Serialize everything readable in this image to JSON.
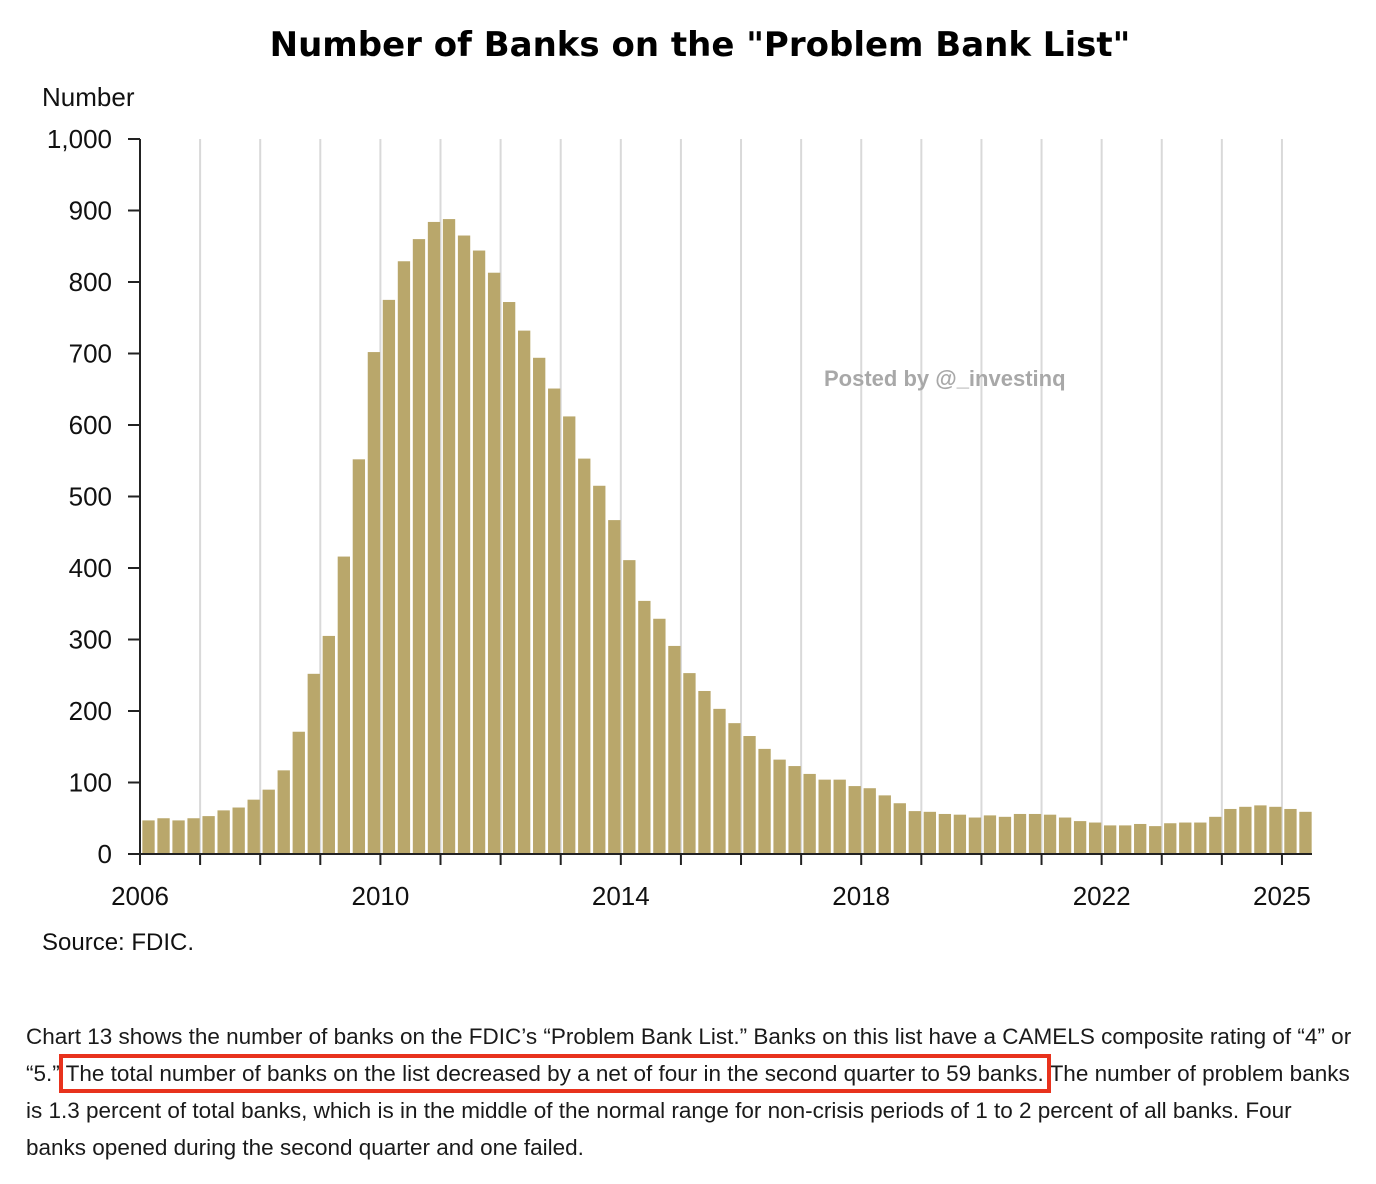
{
  "chart_data": {
    "type": "bar",
    "title": "Number of Banks on the \"Problem Bank List\"",
    "ylabel": "Number",
    "xlabel": "",
    "source": "Source: FDIC.",
    "watermark": "Posted by @_investinq",
    "ylim": [
      0,
      1000
    ],
    "yticks": [
      0,
      100,
      200,
      300,
      400,
      500,
      600,
      700,
      800,
      900,
      1000
    ],
    "ytick_labels": [
      "0",
      "100",
      "200",
      "300",
      "400",
      "500",
      "600",
      "700",
      "800",
      "900",
      "1,000"
    ],
    "xlim": [
      2006,
      2025.5
    ],
    "xtick_labels": [
      "2006",
      "2010",
      "2014",
      "2018",
      "2022",
      "2025"
    ],
    "xtick_values": [
      2006,
      2010,
      2014,
      2018,
      2022,
      2025
    ],
    "grid": "vertical lines at each year",
    "bar_color": "#b9a76b",
    "frequency": "quarterly",
    "x_start": "2006 Q1",
    "values": [
      47,
      50,
      47,
      50,
      53,
      61,
      65,
      76,
      90,
      117,
      171,
      252,
      305,
      416,
      552,
      702,
      775,
      829,
      860,
      884,
      888,
      865,
      844,
      813,
      772,
      732,
      694,
      651,
      612,
      553,
      515,
      467,
      411,
      354,
      329,
      291,
      253,
      228,
      203,
      183,
      165,
      147,
      132,
      123,
      112,
      104,
      104,
      95,
      92,
      82,
      71,
      60,
      59,
      56,
      55,
      51,
      54,
      52,
      56,
      56,
      55,
      51,
      46,
      44,
      40,
      40,
      42,
      39,
      43,
      44,
      44,
      52,
      63,
      66,
      68,
      66,
      63,
      59
    ]
  },
  "paragraph": {
    "part1": "Chart 13 shows the number of banks on the FDIC’s “Problem Bank List.” Banks on this list have a CAMELS composite rating of “4” or “5.” ",
    "highlight": "The total number of banks on the list decreased by a net of four in the second quarter to 59 banks.",
    "part2": " The number of problem banks is 1.3 percent of total banks, which is in the middle of the normal range for non-crisis periods of 1 to 2 percent of all banks. Four banks opened during the second quarter and one failed."
  },
  "colors": {
    "highlight_box": "#e8321d",
    "grid": "#d9d9d9",
    "axis": "#222222"
  }
}
